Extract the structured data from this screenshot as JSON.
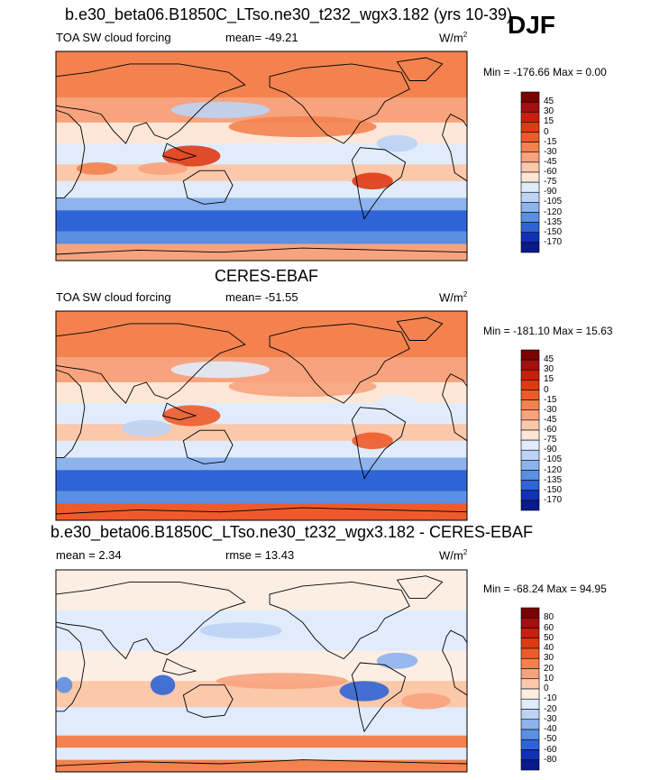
{
  "season": "DJF",
  "panels": [
    {
      "id": "model",
      "title": "b.e30_beta06.B1850C_LTso.ne30_t232_wgx3.182 (yrs 10-39)",
      "left_label": "TOA SW cloud forcing",
      "center_label": "mean= -49.21",
      "units": "W/m",
      "units_sup": "2",
      "minmax": "Min = -176.66 Max =   0.00",
      "colorbar": {
        "labels": [
          "45",
          "30",
          "15",
          "0",
          "-15",
          "-30",
          "-45",
          "-60",
          "-75",
          "-90",
          "-105",
          "-120",
          "-135",
          "-150",
          "-170"
        ],
        "colors": [
          "#7a0403",
          "#a40f0f",
          "#c8200f",
          "#e03a12",
          "#ee5a2a",
          "#f3824f",
          "#f7a37d",
          "#fbc8aa",
          "#fde6d6",
          "#e0ecfb",
          "#bdd3f5",
          "#8db3ee",
          "#5b8fe3",
          "#2f64d6",
          "#1132b8",
          "#0a1a8a"
        ]
      }
    },
    {
      "id": "obs",
      "title": "CERES-EBAF",
      "left_label": "TOA SW cloud forcing",
      "center_label": "mean= -51.55",
      "units": "W/m",
      "units_sup": "2",
      "minmax": "Min = -181.10 Max =  15.63",
      "colorbar": {
        "labels": [
          "45",
          "30",
          "15",
          "0",
          "-15",
          "-30",
          "-45",
          "-60",
          "-75",
          "-90",
          "-105",
          "-120",
          "-135",
          "-150",
          "-170"
        ],
        "colors": [
          "#7a0403",
          "#a40f0f",
          "#c8200f",
          "#e03a12",
          "#ee5a2a",
          "#f3824f",
          "#f7a37d",
          "#fbc8aa",
          "#fde6d6",
          "#e0ecfb",
          "#bdd3f5",
          "#8db3ee",
          "#5b8fe3",
          "#2f64d6",
          "#1132b8",
          "#0a1a8a"
        ]
      }
    },
    {
      "id": "diff",
      "title": "b.e30_beta06.B1850C_LTso.ne30_t232_wgx3.182 - CERES-EBAF",
      "left_label": "mean =   2.34",
      "center_label": "rmse =  13.43",
      "units": "W/m",
      "units_sup": "2",
      "minmax": "Min = -68.24 Max =  94.95",
      "colorbar": {
        "labels": [
          "80",
          "60",
          "50",
          "40",
          "30",
          "20",
          "10",
          "0",
          "-10",
          "-20",
          "-30",
          "-40",
          "-50",
          "-60",
          "-80"
        ],
        "colors": [
          "#7a0403",
          "#a40f0f",
          "#c8200f",
          "#e03a12",
          "#ee5a2a",
          "#f3824f",
          "#f7a37d",
          "#fbc8aa",
          "#fdeee4",
          "#e0ecfb",
          "#bdd3f5",
          "#8db3ee",
          "#5b8fe3",
          "#2f64d6",
          "#1132b8",
          "#0a1a8a"
        ]
      }
    }
  ]
}
